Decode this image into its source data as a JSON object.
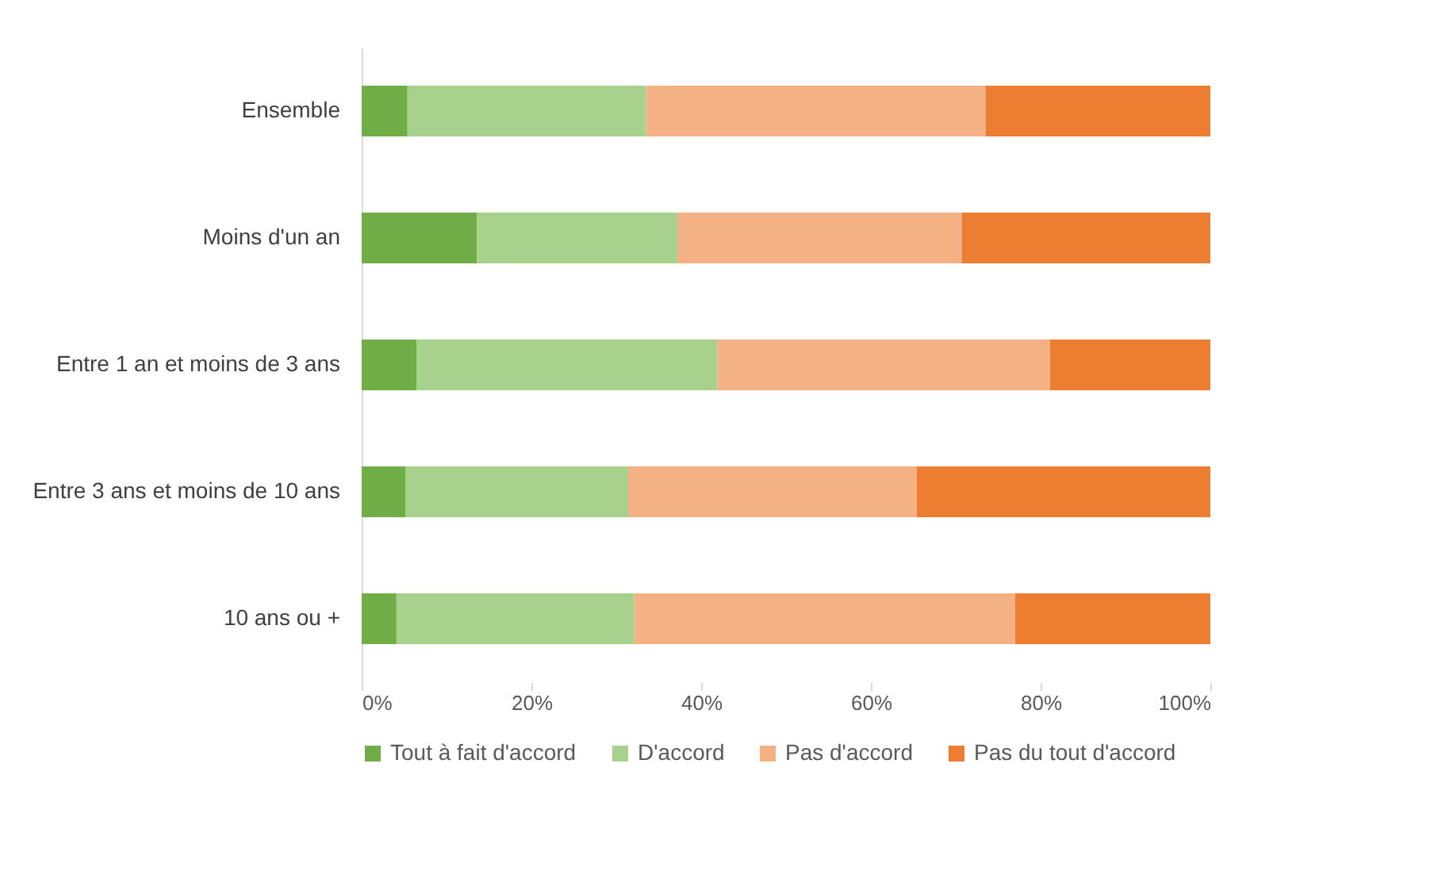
{
  "chart_data": {
    "type": "bar",
    "orientation": "horizontal",
    "stacked": true,
    "categories": [
      "Ensemble",
      "Moins d'un an",
      "Entre 1 an et moins de 3 ans",
      "Entre 3 ans et moins de 10 ans",
      "10 ans ou +"
    ],
    "series": [
      {
        "name": "Tout à fait d'accord",
        "color": "#70ad47",
        "values": [
          5.4,
          13.6,
          6.5,
          5.2,
          4.1
        ]
      },
      {
        "name": "D'accord",
        "color": "#a9d18e",
        "values": [
          28.1,
          23.6,
          35.4,
          26.2,
          28.0
        ]
      },
      {
        "name": "Pas d'accord",
        "color": "#f4b183",
        "values": [
          40.0,
          33.5,
          39.2,
          34.0,
          44.9
        ]
      },
      {
        "name": "Pas du tout d'accord",
        "color": "#ed7d31",
        "values": [
          26.5,
          29.3,
          18.9,
          34.6,
          23.0
        ]
      }
    ],
    "xlim": [
      0,
      100
    ],
    "xticks": [
      {
        "value": 0,
        "label": "0%"
      },
      {
        "value": 20,
        "label": "20%"
      },
      {
        "value": 40,
        "label": "40%"
      },
      {
        "value": 60,
        "label": "60%"
      },
      {
        "value": 80,
        "label": "80%"
      },
      {
        "value": 100,
        "label": "100%"
      }
    ],
    "legend": "bottom"
  }
}
